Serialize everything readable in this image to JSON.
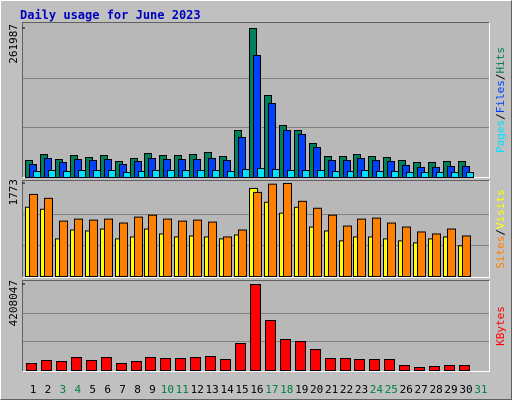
{
  "separator": "/",
  "chart_data": [
    {
      "type": "bar",
      "title": "Daily usage for June 2023",
      "categories": [
        "1",
        "2",
        "3",
        "4",
        "5",
        "6",
        "7",
        "8",
        "9",
        "10",
        "11",
        "12",
        "13",
        "14",
        "15",
        "16",
        "17",
        "18",
        "19",
        "20",
        "21",
        "22",
        "23",
        "24",
        "25",
        "26",
        "27",
        "28",
        "29",
        "30",
        "31"
      ],
      "category_colors": [
        "#000000",
        "#000000",
        "#008040",
        "#008040",
        "#000000",
        "#000000",
        "#000000",
        "#000000",
        "#000000",
        "#008040",
        "#008040",
        "#000000",
        "#000000",
        "#000000",
        "#000000",
        "#000000",
        "#008040",
        "#008040",
        "#000000",
        "#000000",
        "#000000",
        "#000000",
        "#000000",
        "#008040",
        "#008040",
        "#000000",
        "#000000",
        "#000000",
        "#000000",
        "#000000",
        "#008040"
      ],
      "series": [
        {
          "name": "Hits",
          "color": "#00805c",
          "values": [
            29890,
            40430,
            31640,
            38680,
            35160,
            38680,
            28130,
            33400,
            42190,
            38680,
            38680,
            40430,
            43950,
            36920,
            82630,
            261987,
            144170,
            91420,
            82630,
            59780,
            36920,
            36920,
            40430,
            36920,
            35160,
            29890,
            26370,
            26370,
            28130,
            28130,
            null
          ]
        },
        {
          "name": "Files",
          "color": "#0040ff",
          "values": [
            22850,
            33400,
            26370,
            31640,
            29890,
            31640,
            22850,
            28130,
            33400,
            31640,
            31640,
            31640,
            33400,
            29890,
            70320,
            214480,
            130090,
            82630,
            75590,
            52740,
            29890,
            29890,
            33400,
            29890,
            28130,
            21100,
            17580,
            17580,
            19340,
            19340,
            null
          ]
        },
        {
          "name": "Pages",
          "color": "#00e0ff",
          "values": [
            10550,
            12310,
            10550,
            12310,
            12310,
            12310,
            8790,
            10550,
            12310,
            12310,
            12310,
            12310,
            12310,
            10550,
            14060,
            15820,
            14060,
            12310,
            12310,
            12310,
            10550,
            10550,
            12310,
            10550,
            10550,
            8790,
            8790,
            8790,
            8790,
            8790,
            null
          ]
        }
      ],
      "ylim": [
        0,
        261987
      ],
      "yticks": [
        261987
      ],
      "grid_lines": 3
    },
    {
      "type": "bar",
      "series": [
        {
          "name": "Visits",
          "color": "#ffff00",
          "values": [
            1320,
            1282,
            717,
            886,
            868,
            905,
            717,
            754,
            905,
            811,
            754,
            773,
            754,
            717,
            792,
            1679,
            1415,
            1207,
            1320,
            943,
            868,
            679,
            754,
            754,
            717,
            679,
            641,
            717,
            754,
            585,
            null
          ]
        },
        {
          "name": "Sites",
          "color": "#ff8000",
          "values": [
            1565,
            1490,
            1056,
            1094,
            1075,
            1094,
            1019,
            1132,
            1169,
            1094,
            1056,
            1075,
            1037,
            754,
            886,
            1603,
            1760,
            1773,
            1433,
            1301,
            1169,
            962,
            1094,
            1113,
            1019,
            943,
            849,
            811,
            905,
            773,
            null
          ]
        }
      ],
      "ylim": [
        0,
        1773
      ],
      "yticks": [
        1773
      ],
      "grid_lines": 3
    },
    {
      "type": "bar",
      "series": [
        {
          "name": "KBytes",
          "color": "#ff0000",
          "values": [
            342500,
            489300,
            440400,
            636100,
            489300,
            636100,
            342500,
            440400,
            636100,
            587200,
            587200,
            636100,
            685000,
            538200,
            1321100,
            4208047,
            2446600,
            1516900,
            1419000,
            1027600,
            587200,
            587200,
            538200,
            538200,
            538200,
            244700,
            146800,
            195700,
            244700,
            244700,
            null
          ]
        }
      ],
      "ylim": [
        0,
        4208047
      ],
      "yticks": [
        4208047
      ],
      "grid_lines": 3
    }
  ]
}
